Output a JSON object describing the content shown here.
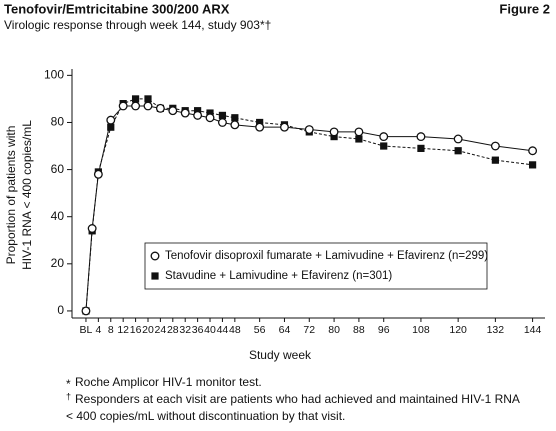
{
  "chart_data": {
    "type": "line",
    "title": "Tenofovir/Emtricitabine 300/200 ARX",
    "figure_label": "Figure 2",
    "subtitle": "Virologic response through week 144, study 903*†",
    "y_label": [
      "Proportion of patients with",
      "HIV-1 RNA < 400 copies/mL"
    ],
    "x_label": "Study week",
    "x": [
      0,
      2,
      4,
      8,
      12,
      16,
      20,
      24,
      28,
      32,
      36,
      40,
      44,
      48,
      56,
      64,
      72,
      80,
      88,
      96,
      108,
      120,
      132,
      144
    ],
    "series": [
      {
        "name": "Tenofovir disoproxil fumarate + Lamivudine + Efavirenz (n=299)",
        "color": "#111111",
        "marker": "open-circle",
        "dash": false,
        "values": [
          0,
          35,
          58,
          81,
          87,
          87,
          87,
          86,
          85,
          84,
          83,
          82,
          80,
          79,
          78,
          78,
          77,
          76,
          76,
          74,
          74,
          73,
          70,
          68
        ]
      },
      {
        "name": "Stavudine + Lamivudine + Efavirenz (n=301)",
        "color": "#111111",
        "marker": "filled-square",
        "dash": true,
        "values": [
          0,
          34,
          59,
          78,
          88,
          90,
          90,
          86,
          86,
          85,
          85,
          84,
          83,
          82,
          80,
          79,
          76,
          74,
          73,
          70,
          69,
          68,
          64,
          62
        ]
      }
    ],
    "xlim": [
      -4.5,
      148
    ],
    "xticks": [
      {
        "value": 0,
        "label": "BL"
      },
      4,
      8,
      12,
      16,
      20,
      24,
      28,
      32,
      36,
      40,
      44,
      48,
      56,
      64,
      72,
      80,
      88,
      96,
      108,
      120,
      132,
      144
    ],
    "ylim": [
      -3,
      101
    ],
    "yticks": [
      0,
      20,
      40,
      60,
      80,
      100
    ],
    "grid": false,
    "legend": "lower center",
    "footnotes": [
      {
        "marker": "*",
        "lines": [
          "Roche Amplicor HIV-1 monitor test."
        ]
      },
      {
        "marker": "†",
        "lines": [
          "Responders at each visit are patients who had achieved and maintained HIV-1 RNA",
          "< 400 copies/mL without discontinuation by that visit."
        ]
      }
    ]
  }
}
